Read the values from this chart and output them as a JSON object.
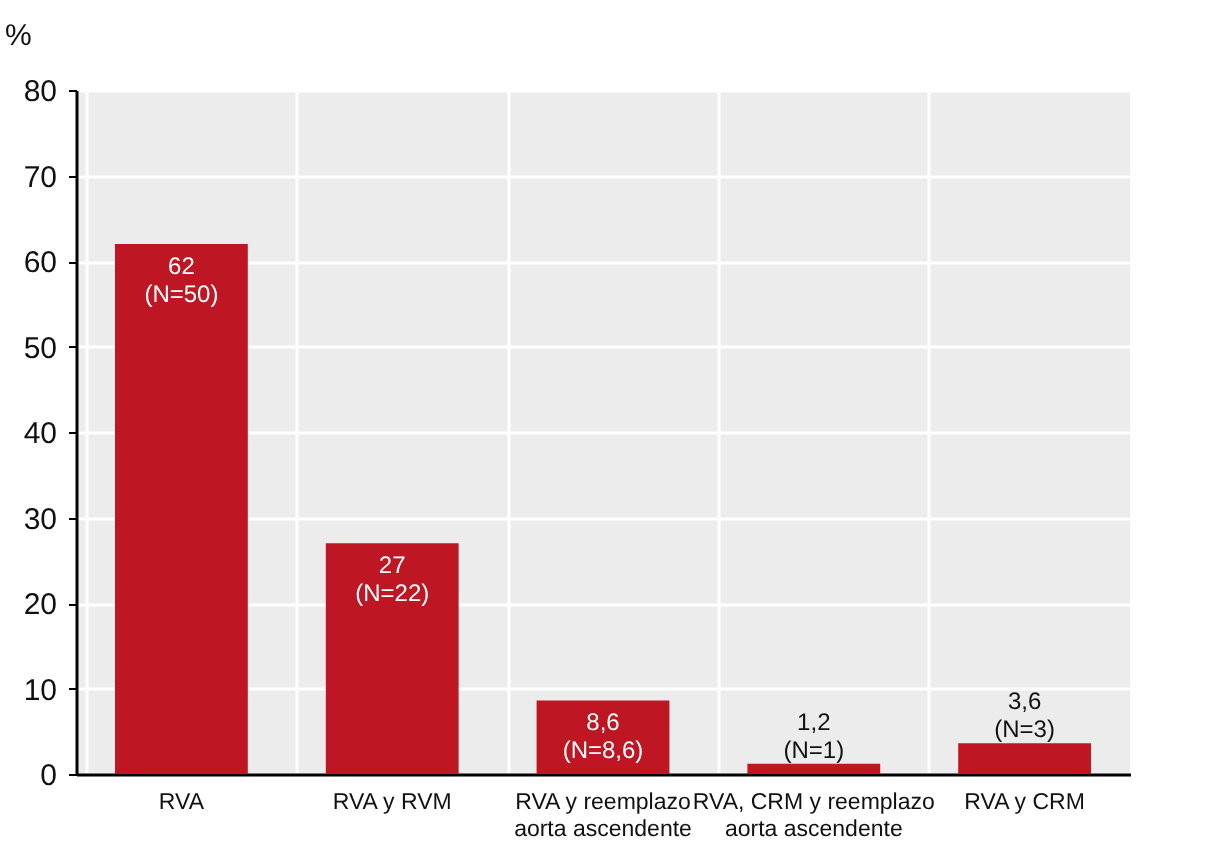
{
  "chart_data": {
    "type": "bar",
    "ylabel": "%",
    "categories": [
      "RVA",
      "RVA y RVM",
      "RVA y reemplazo aorta ascendente",
      "RVA, CRM y reemplazo aorta ascendente",
      "RVA y CRM"
    ],
    "values": [
      62,
      27,
      8.6,
      1.2,
      3.6
    ],
    "value_labels": [
      "62 (N=50)",
      "27 (N=22)",
      "8,6 (N=8,6)",
      "1,2 (N=1)",
      "3,6 (N=3)"
    ],
    "color": "#be1622",
    "ylim": [
      0,
      80
    ],
    "yticks": [
      0,
      10,
      20,
      30,
      40,
      50,
      60,
      70,
      80
    ],
    "grid": true
  }
}
